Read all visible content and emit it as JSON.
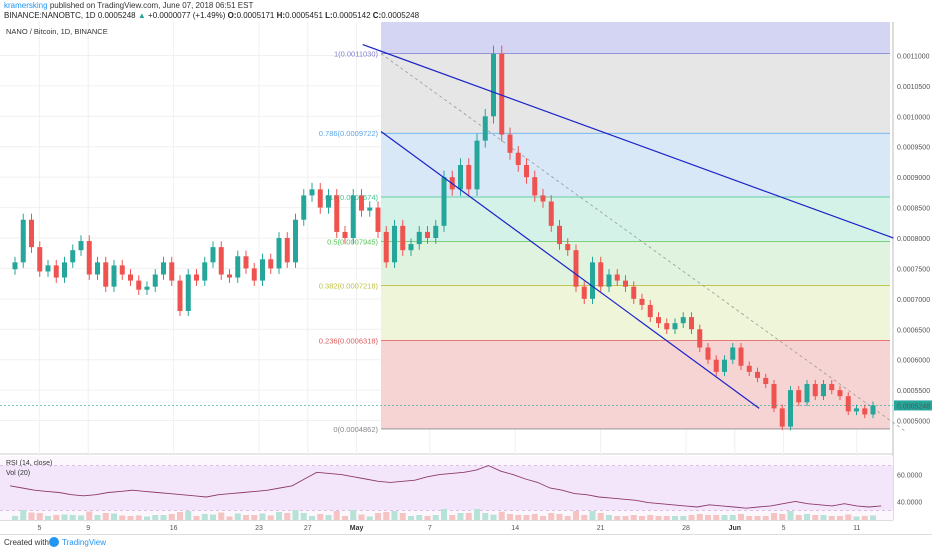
{
  "header": {
    "author": "kramersking",
    "published": "published on TradingView.com, June 07, 2018 06:51 EST",
    "symbol_line": "BINANCE:NANOBTC, 1D",
    "last": "0.0005248",
    "change_arrow": "▲",
    "change": "+0.0000077 (+1.49%)",
    "o_label": "O:",
    "o": "0.0005171",
    "h_label": "H:",
    "h": "0.0005451",
    "l_label": "L:",
    "l": "0.0005142",
    "c_label": "C:",
    "c": "0.0005248"
  },
  "footer": {
    "created_with": "Created with",
    "brand": "TradingView"
  },
  "colors": {
    "up": "#26a69a",
    "down": "#ef5350",
    "trendline": "#1a22c8",
    "rsi_line": "#8e3a6a",
    "rsi_bg": "#f3e6fb"
  },
  "chart_data": {
    "type": "candlestick",
    "title": "NANO / Bitcoin, 1D, BINANCE",
    "y_axis": {
      "range": [
        0.000445,
        0.001155
      ],
      "ticks": [
        "0.0011000",
        "0.0010500",
        "0.0010000",
        "0.0009500",
        "0.0009000",
        "0.0008500",
        "0.0008000",
        "0.0007500",
        "0.0007000",
        "0.0006500",
        "0.0006000",
        "0.0005500",
        "0.0005000"
      ],
      "current_price_label": "0.0005248"
    },
    "x_axis": {
      "ticks": [
        "5",
        "9",
        "16",
        "23",
        "27",
        "May",
        "7",
        "14",
        "21",
        "28",
        "Jun",
        "5",
        "11"
      ],
      "tick_days": [
        -25,
        -21,
        -14,
        -7,
        -3,
        1,
        7,
        14,
        21,
        28,
        32,
        36,
        42
      ]
    },
    "candles_close": [
      0.00076,
      0.00083,
      0.000785,
      0.000745,
      0.000755,
      0.000735,
      0.00076,
      0.00078,
      0.000795,
      0.00074,
      0.00076,
      0.00072,
      0.000755,
      0.00074,
      0.00073,
      0.000715,
      0.00072,
      0.00074,
      0.00076,
      0.00073,
      0.00068,
      0.00074,
      0.00073,
      0.00076,
      0.000785,
      0.00074,
      0.000735,
      0.00077,
      0.00075,
      0.00073,
      0.000765,
      0.00075,
      0.0008,
      0.00076,
      0.00083,
      0.00087,
      0.00088,
      0.00085,
      0.00087,
      0.00081,
      0.0008,
      0.00087,
      0.000845,
      0.00085,
      0.00081,
      0.00076,
      0.00082,
      0.00078,
      0.00079,
      0.00081,
      0.0008,
      0.00082,
      0.0009,
      0.00088,
      0.00092,
      0.00088,
      0.00096,
      0.001,
      0.001103,
      0.00097,
      0.00094,
      0.00092,
      0.0009,
      0.00087,
      0.00086,
      0.00082,
      0.00079,
      0.00078,
      0.00072,
      0.0007,
      0.00076,
      0.00072,
      0.00074,
      0.00073,
      0.00072,
      0.0007,
      0.00069,
      0.00067,
      0.00066,
      0.00065,
      0.00066,
      0.00067,
      0.00065,
      0.00062,
      0.0006,
      0.00058,
      0.0006,
      0.00062,
      0.00059,
      0.00058,
      0.00057,
      0.00056,
      0.00052,
      0.00049,
      0.00055,
      0.00053,
      0.00056,
      0.00054,
      0.00056,
      0.00055,
      0.00054,
      0.000515,
      0.00052,
      0.00051,
      0.000525
    ],
    "fibonacci": [
      {
        "label": "1(0.0011030)",
        "price": 0.001103,
        "color": "#7e7ed0"
      },
      {
        "label": "0.786(0.0009722)",
        "price": 0.0009722,
        "color": "#5aa6e8"
      },
      {
        "label": "0.618(0.0008674)",
        "price": 0.0008674,
        "color": "#3ec48f"
      },
      {
        "label": "0.5(0.0007945)",
        "price": 0.0007945,
        "color": "#58c458"
      },
      {
        "label": "0.382(0.0007218)",
        "price": 0.0007218,
        "color": "#c0c040"
      },
      {
        "label": "0.236(0.0006318)",
        "price": 0.0006318,
        "color": "#e05a5a"
      },
      {
        "label": "0(0.0004862)",
        "price": 0.0004862,
        "color": "#888888"
      }
    ],
    "fib_fills": [
      "#d4d4f3",
      "#e6e6e6",
      "#d9e8f7",
      "#d4f2e8",
      "#dff3df",
      "#eef5d9",
      "#f7d4d4"
    ],
    "trendlines": [
      {
        "from": [
          1.5,
          0.001118
        ],
        "to": [
          45.0,
          0.0008
        ]
      },
      {
        "from": [
          3.0,
          0.000975
        ],
        "to": [
          34.0,
          0.00052
        ]
      }
    ],
    "diagonal": {
      "from": [
        3.0,
        0.001103
      ],
      "to": [
        46.0,
        0.000482
      ]
    },
    "rsi": {
      "label": "RSI (14, close)",
      "vol_label": "Vol (20)",
      "ticks": [
        "60.0000",
        "40.0000"
      ],
      "values": [
        52,
        50,
        48,
        47,
        46,
        44,
        43,
        44,
        46,
        47,
        48,
        47,
        46,
        45,
        44,
        43,
        42,
        44,
        45,
        46,
        47,
        48,
        50,
        52,
        58,
        64,
        63,
        62,
        60,
        58,
        56,
        55,
        56,
        57,
        60,
        62,
        63,
        64,
        66,
        70,
        65,
        62,
        58,
        55,
        50,
        48,
        45,
        44,
        42,
        41,
        40,
        39,
        37,
        36,
        35,
        34,
        33,
        35,
        34,
        33,
        32,
        33,
        34,
        36,
        38,
        36,
        35,
        34,
        36,
        34,
        33,
        34
      ]
    }
  }
}
